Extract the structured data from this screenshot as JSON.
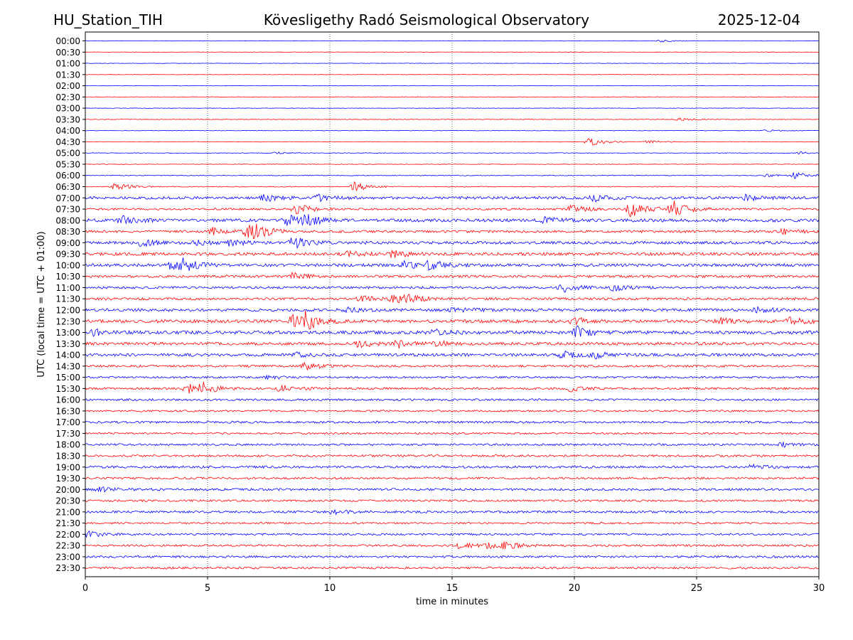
{
  "header": {
    "station": "HU_Station_TIH",
    "title": "Kövesligethy Radó Seismological Observatory",
    "date": "2025-12-04"
  },
  "chart_data": {
    "type": "line",
    "title": "Kövesligethy Radó Seismological Observatory",
    "xlabel": "time in minutes",
    "ylabel": "UTC (local time = UTC + 01:00)",
    "xlim": [
      0,
      30
    ],
    "x_ticks": [
      0,
      5,
      10,
      15,
      20,
      25,
      30
    ],
    "x_tick_labels": [
      "0",
      "5",
      "10",
      "15",
      "20",
      "25",
      "30"
    ],
    "grid": "vertical dotted at major x ticks",
    "colors": {
      "even_rows": "#0000ff",
      "odd_rows": "#ff0000"
    },
    "rows": [
      {
        "label": "00:00",
        "amp": 0.3,
        "events": [
          [
            23.5,
            1.6
          ]
        ]
      },
      {
        "label": "00:30",
        "amp": 0.3,
        "events": []
      },
      {
        "label": "01:00",
        "amp": 0.3,
        "events": []
      },
      {
        "label": "01:30",
        "amp": 0.3,
        "events": []
      },
      {
        "label": "02:00",
        "amp": 0.3,
        "events": []
      },
      {
        "label": "02:30",
        "amp": 0.3,
        "events": []
      },
      {
        "label": "03:00",
        "amp": 0.3,
        "events": []
      },
      {
        "label": "03:30",
        "amp": 0.35,
        "events": [
          [
            24.3,
            1.8
          ]
        ]
      },
      {
        "label": "04:00",
        "amp": 0.35,
        "events": [
          [
            27.8,
            1.5
          ]
        ]
      },
      {
        "label": "04:30",
        "amp": 0.35,
        "events": [
          [
            20.6,
            7
          ],
          [
            23,
            1.8
          ]
        ]
      },
      {
        "label": "05:00",
        "amp": 0.45,
        "events": [
          [
            29.2,
            1.8
          ],
          [
            7.8,
            1.5
          ]
        ]
      },
      {
        "label": "05:30",
        "amp": 0.4,
        "events": []
      },
      {
        "label": "06:00",
        "amp": 0.55,
        "events": [
          [
            29,
            4.5
          ],
          [
            27.8,
            1.8
          ]
        ]
      },
      {
        "label": "06:30",
        "amp": 0.6,
        "events": [
          [
            1.2,
            6
          ],
          [
            11,
            7
          ]
        ]
      },
      {
        "label": "07:00",
        "amp": 1.9,
        "events": [
          [
            7.3,
            5
          ],
          [
            9.5,
            4
          ],
          [
            20.8,
            5
          ],
          [
            27,
            4
          ]
        ]
      },
      {
        "label": "07:30",
        "amp": 1.4,
        "events": [
          [
            8.6,
            8
          ],
          [
            19.8,
            6
          ],
          [
            22.3,
            11
          ],
          [
            24,
            13
          ]
        ]
      },
      {
        "label": "08:00",
        "amp": 2.2,
        "events": [
          [
            8.2,
            8
          ],
          [
            9.0,
            8
          ],
          [
            1.5,
            5
          ],
          [
            18.8,
            4
          ]
        ]
      },
      {
        "label": "08:30",
        "amp": 1.7,
        "events": [
          [
            6.6,
            9
          ],
          [
            5.2,
            5
          ],
          [
            7.0,
            6
          ],
          [
            28.5,
            4
          ]
        ]
      },
      {
        "label": "09:00",
        "amp": 2.0,
        "events": [
          [
            8.5,
            8
          ],
          [
            2.3,
            5
          ],
          [
            4.6,
            4
          ],
          [
            5.9,
            4
          ]
        ]
      },
      {
        "label": "09:30",
        "amp": 2.1,
        "events": [
          [
            12.5,
            6
          ],
          [
            10.5,
            5
          ]
        ]
      },
      {
        "label": "10:00",
        "amp": 2.1,
        "events": [
          [
            4.0,
            8
          ],
          [
            13,
            6
          ],
          [
            14.1,
            6
          ],
          [
            3.5,
            5
          ]
        ]
      },
      {
        "label": "10:30",
        "amp": 1.7,
        "events": [
          [
            8.5,
            5
          ]
        ]
      },
      {
        "label": "11:00",
        "amp": 1.6,
        "events": [
          [
            19.5,
            7
          ],
          [
            21.6,
            4
          ]
        ]
      },
      {
        "label": "11:30",
        "amp": 1.7,
        "events": [
          [
            12.6,
            6
          ],
          [
            11.3,
            4
          ],
          [
            13.2,
            4
          ]
        ]
      },
      {
        "label": "12:00",
        "amp": 2.0,
        "events": [
          [
            15,
            5
          ],
          [
            10.5,
            5
          ],
          [
            27.5,
            4
          ]
        ]
      },
      {
        "label": "12:30",
        "amp": 2.2,
        "events": [
          [
            8.5,
            9
          ],
          [
            9.0,
            9
          ],
          [
            20,
            5
          ],
          [
            28.8,
            5
          ],
          [
            25.9,
            4
          ]
        ]
      },
      {
        "label": "13:00",
        "amp": 2.3,
        "events": [
          [
            20.1,
            9
          ],
          [
            0.3,
            4
          ],
          [
            14.3,
            4
          ]
        ]
      },
      {
        "label": "13:30",
        "amp": 2.0,
        "events": [
          [
            11.2,
            5
          ],
          [
            12.8,
            5
          ],
          [
            14.3,
            4
          ]
        ]
      },
      {
        "label": "14:00",
        "amp": 2.0,
        "events": [
          [
            19.5,
            5
          ],
          [
            20.8,
            4
          ],
          [
            8.6,
            4
          ]
        ]
      },
      {
        "label": "14:30",
        "amp": 1.5,
        "events": [
          [
            9,
            5
          ]
        ]
      },
      {
        "label": "15:00",
        "amp": 1.3,
        "events": [
          [
            7.5,
            3
          ]
        ]
      },
      {
        "label": "15:30",
        "amp": 1.5,
        "events": [
          [
            4.2,
            8
          ],
          [
            4.8,
            6
          ],
          [
            8.0,
            5
          ],
          [
            19.8,
            4
          ]
        ]
      },
      {
        "label": "16:00",
        "amp": 1.4,
        "events": []
      },
      {
        "label": "16:30",
        "amp": 1.3,
        "events": []
      },
      {
        "label": "17:00",
        "amp": 1.5,
        "events": []
      },
      {
        "label": "17:30",
        "amp": 1.3,
        "events": []
      },
      {
        "label": "18:00",
        "amp": 1.4,
        "events": [
          [
            28.5,
            3
          ]
        ]
      },
      {
        "label": "18:30",
        "amp": 1.5,
        "events": []
      },
      {
        "label": "19:00",
        "amp": 1.6,
        "events": [
          [
            27.3,
            3
          ]
        ]
      },
      {
        "label": "19:30",
        "amp": 1.4,
        "events": []
      },
      {
        "label": "20:00",
        "amp": 1.6,
        "events": [
          [
            0.6,
            3
          ]
        ]
      },
      {
        "label": "20:30",
        "amp": 1.4,
        "events": []
      },
      {
        "label": "21:00",
        "amp": 1.6,
        "events": [
          [
            10.1,
            3
          ]
        ]
      },
      {
        "label": "21:30",
        "amp": 1.2,
        "events": []
      },
      {
        "label": "22:00",
        "amp": 1.3,
        "events": [
          [
            0.1,
            4
          ]
        ]
      },
      {
        "label": "22:30",
        "amp": 1.4,
        "events": [
          [
            17.1,
            5
          ],
          [
            15.3,
            4
          ],
          [
            16.5,
            3
          ]
        ]
      },
      {
        "label": "23:00",
        "amp": 1.5,
        "events": []
      },
      {
        "label": "23:30",
        "amp": 1.5,
        "events": []
      }
    ]
  }
}
